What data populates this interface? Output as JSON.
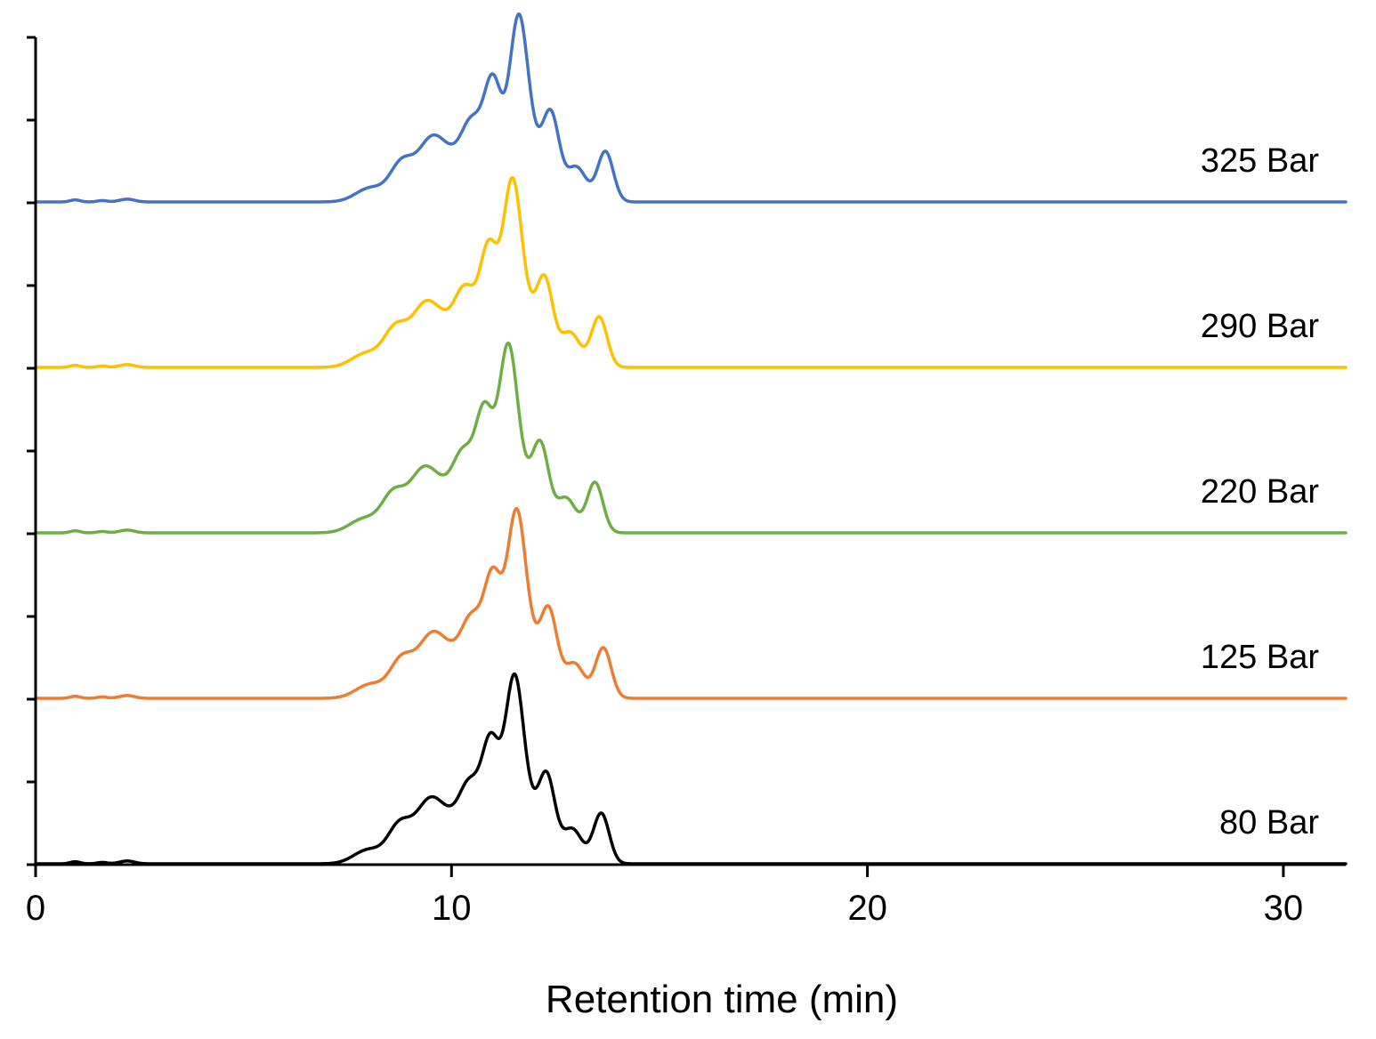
{
  "chart_data": {
    "type": "line",
    "title": "",
    "xlabel": "Retention time (min)",
    "ylabel": "",
    "xlim": [
      0,
      31.5
    ],
    "x_ticks": [
      {
        "value": 0,
        "label": "0"
      },
      {
        "value": 10,
        "label": "10"
      },
      {
        "value": 20,
        "label": "20"
      },
      {
        "value": 30,
        "label": "30"
      }
    ],
    "y_tick_count": 11,
    "grid": false,
    "note": "Stacked chromatograms; each trace offset vertically by two y-tick intervals. Peak heights are relative intensities (arbitrary units, top peak = 1.0).",
    "baseline": 0.005,
    "minor_peaks": [
      {
        "rt": 0.95,
        "height": 0.012,
        "width": 0.12
      },
      {
        "rt": 1.6,
        "height": 0.008,
        "width": 0.12
      },
      {
        "rt": 2.2,
        "height": 0.016,
        "width": 0.18
      }
    ],
    "series": [
      {
        "name": "80 Bar",
        "color": "#000000",
        "offset_index": 0,
        "peaks": [
          {
            "rt": 8.0,
            "height": 0.08,
            "width": 0.35
          },
          {
            "rt": 8.75,
            "height": 0.21,
            "width": 0.28
          },
          {
            "rt": 9.45,
            "height": 0.33,
            "width": 0.33
          },
          {
            "rt": 10.0,
            "height": 0.18,
            "width": 0.32
          },
          {
            "rt": 10.45,
            "height": 0.38,
            "width": 0.25
          },
          {
            "rt": 10.95,
            "height": 0.66,
            "width": 0.22
          },
          {
            "rt": 11.5,
            "height": 0.95,
            "width": 0.22
          },
          {
            "rt": 11.85,
            "height": 0.25,
            "width": 0.28
          },
          {
            "rt": 12.3,
            "height": 0.45,
            "width": 0.2
          },
          {
            "rt": 12.9,
            "height": 0.2,
            "width": 0.24
          },
          {
            "rt": 13.6,
            "height": 0.29,
            "width": 0.19
          }
        ]
      },
      {
        "name": "125 Bar",
        "color": "#ED7D31",
        "offset_index": 1,
        "peaks": [
          {
            "rt": 8.05,
            "height": 0.08,
            "width": 0.35
          },
          {
            "rt": 8.8,
            "height": 0.21,
            "width": 0.28
          },
          {
            "rt": 9.5,
            "height": 0.33,
            "width": 0.33
          },
          {
            "rt": 10.05,
            "height": 0.18,
            "width": 0.32
          },
          {
            "rt": 10.5,
            "height": 0.38,
            "width": 0.25
          },
          {
            "rt": 11.0,
            "height": 0.66,
            "width": 0.22
          },
          {
            "rt": 11.55,
            "height": 0.95,
            "width": 0.22
          },
          {
            "rt": 11.9,
            "height": 0.25,
            "width": 0.28
          },
          {
            "rt": 12.35,
            "height": 0.45,
            "width": 0.2
          },
          {
            "rt": 12.95,
            "height": 0.2,
            "width": 0.24
          },
          {
            "rt": 13.65,
            "height": 0.29,
            "width": 0.19
          }
        ]
      },
      {
        "name": "220 Bar",
        "color": "#70AD47",
        "offset_index": 2,
        "peaks": [
          {
            "rt": 7.9,
            "height": 0.08,
            "width": 0.35
          },
          {
            "rt": 8.6,
            "height": 0.21,
            "width": 0.28
          },
          {
            "rt": 9.3,
            "height": 0.33,
            "width": 0.33
          },
          {
            "rt": 9.85,
            "height": 0.18,
            "width": 0.32
          },
          {
            "rt": 10.3,
            "height": 0.38,
            "width": 0.25
          },
          {
            "rt": 10.8,
            "height": 0.66,
            "width": 0.22
          },
          {
            "rt": 11.35,
            "height": 0.95,
            "width": 0.22
          },
          {
            "rt": 11.7,
            "height": 0.25,
            "width": 0.28
          },
          {
            "rt": 12.15,
            "height": 0.45,
            "width": 0.2
          },
          {
            "rt": 12.75,
            "height": 0.2,
            "width": 0.24
          },
          {
            "rt": 13.45,
            "height": 0.29,
            "width": 0.19
          }
        ]
      },
      {
        "name": "290 Bar",
        "color": "#FFC000",
        "offset_index": 3,
        "peaks": [
          {
            "rt": 7.95,
            "height": 0.08,
            "width": 0.35
          },
          {
            "rt": 8.65,
            "height": 0.21,
            "width": 0.28
          },
          {
            "rt": 9.35,
            "height": 0.33,
            "width": 0.33
          },
          {
            "rt": 9.9,
            "height": 0.18,
            "width": 0.32
          },
          {
            "rt": 10.35,
            "height": 0.38,
            "width": 0.25
          },
          {
            "rt": 10.9,
            "height": 0.66,
            "width": 0.22
          },
          {
            "rt": 11.45,
            "height": 0.95,
            "width": 0.22
          },
          {
            "rt": 11.8,
            "height": 0.25,
            "width": 0.28
          },
          {
            "rt": 12.25,
            "height": 0.45,
            "width": 0.2
          },
          {
            "rt": 12.85,
            "height": 0.2,
            "width": 0.24
          },
          {
            "rt": 13.55,
            "height": 0.29,
            "width": 0.19
          }
        ]
      },
      {
        "name": "325 Bar",
        "color": "#4472C4",
        "offset_index": 4,
        "peaks": [
          {
            "rt": 8.05,
            "height": 0.08,
            "width": 0.35
          },
          {
            "rt": 8.8,
            "height": 0.21,
            "width": 0.28
          },
          {
            "rt": 9.5,
            "height": 0.33,
            "width": 0.33
          },
          {
            "rt": 10.05,
            "height": 0.18,
            "width": 0.32
          },
          {
            "rt": 10.5,
            "height": 0.38,
            "width": 0.25
          },
          {
            "rt": 11.0,
            "height": 0.66,
            "width": 0.22
          },
          {
            "rt": 11.6,
            "height": 0.95,
            "width": 0.22
          },
          {
            "rt": 11.95,
            "height": 0.25,
            "width": 0.28
          },
          {
            "rt": 12.4,
            "height": 0.45,
            "width": 0.2
          },
          {
            "rt": 13.0,
            "height": 0.2,
            "width": 0.24
          },
          {
            "rt": 13.7,
            "height": 0.29,
            "width": 0.19
          }
        ]
      }
    ]
  }
}
